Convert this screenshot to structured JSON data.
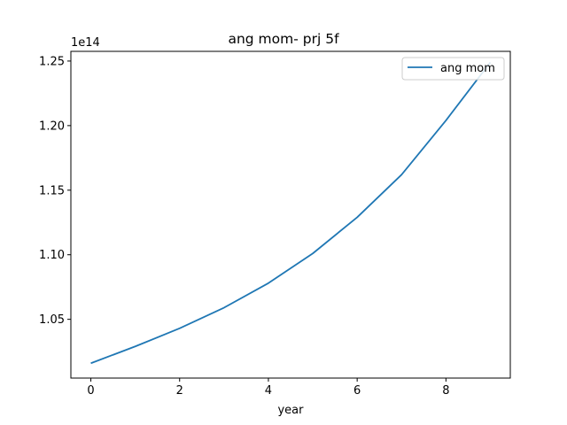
{
  "chart_data": {
    "type": "line",
    "title": "ang mom- prj 5f",
    "xlabel": "year",
    "ylabel": "",
    "y_offset_label": "1e14",
    "y_offset_multiplier": 100000000000000.0,
    "xlim": [
      -0.45,
      9.45
    ],
    "ylim": [
      1.0045,
      1.2575
    ],
    "x_ticks": [
      0,
      2,
      4,
      6,
      8
    ],
    "x_tick_labels": [
      "0",
      "2",
      "4",
      "6",
      "8"
    ],
    "y_ticks": [
      1.05,
      1.1,
      1.15,
      1.2,
      1.25
    ],
    "y_tick_labels": [
      "1.05",
      "1.10",
      "1.15",
      "1.20",
      "1.25"
    ],
    "grid": false,
    "legend_position": "top-right",
    "series": [
      {
        "name": "ang mom",
        "color": "#1f77b4",
        "x": [
          0,
          1,
          2,
          3,
          4,
          5,
          6,
          7,
          8,
          9
        ],
        "y": [
          1.016,
          1.029,
          1.043,
          1.059,
          1.078,
          1.101,
          1.129,
          1.162,
          1.204,
          1.249
        ]
      }
    ]
  }
}
